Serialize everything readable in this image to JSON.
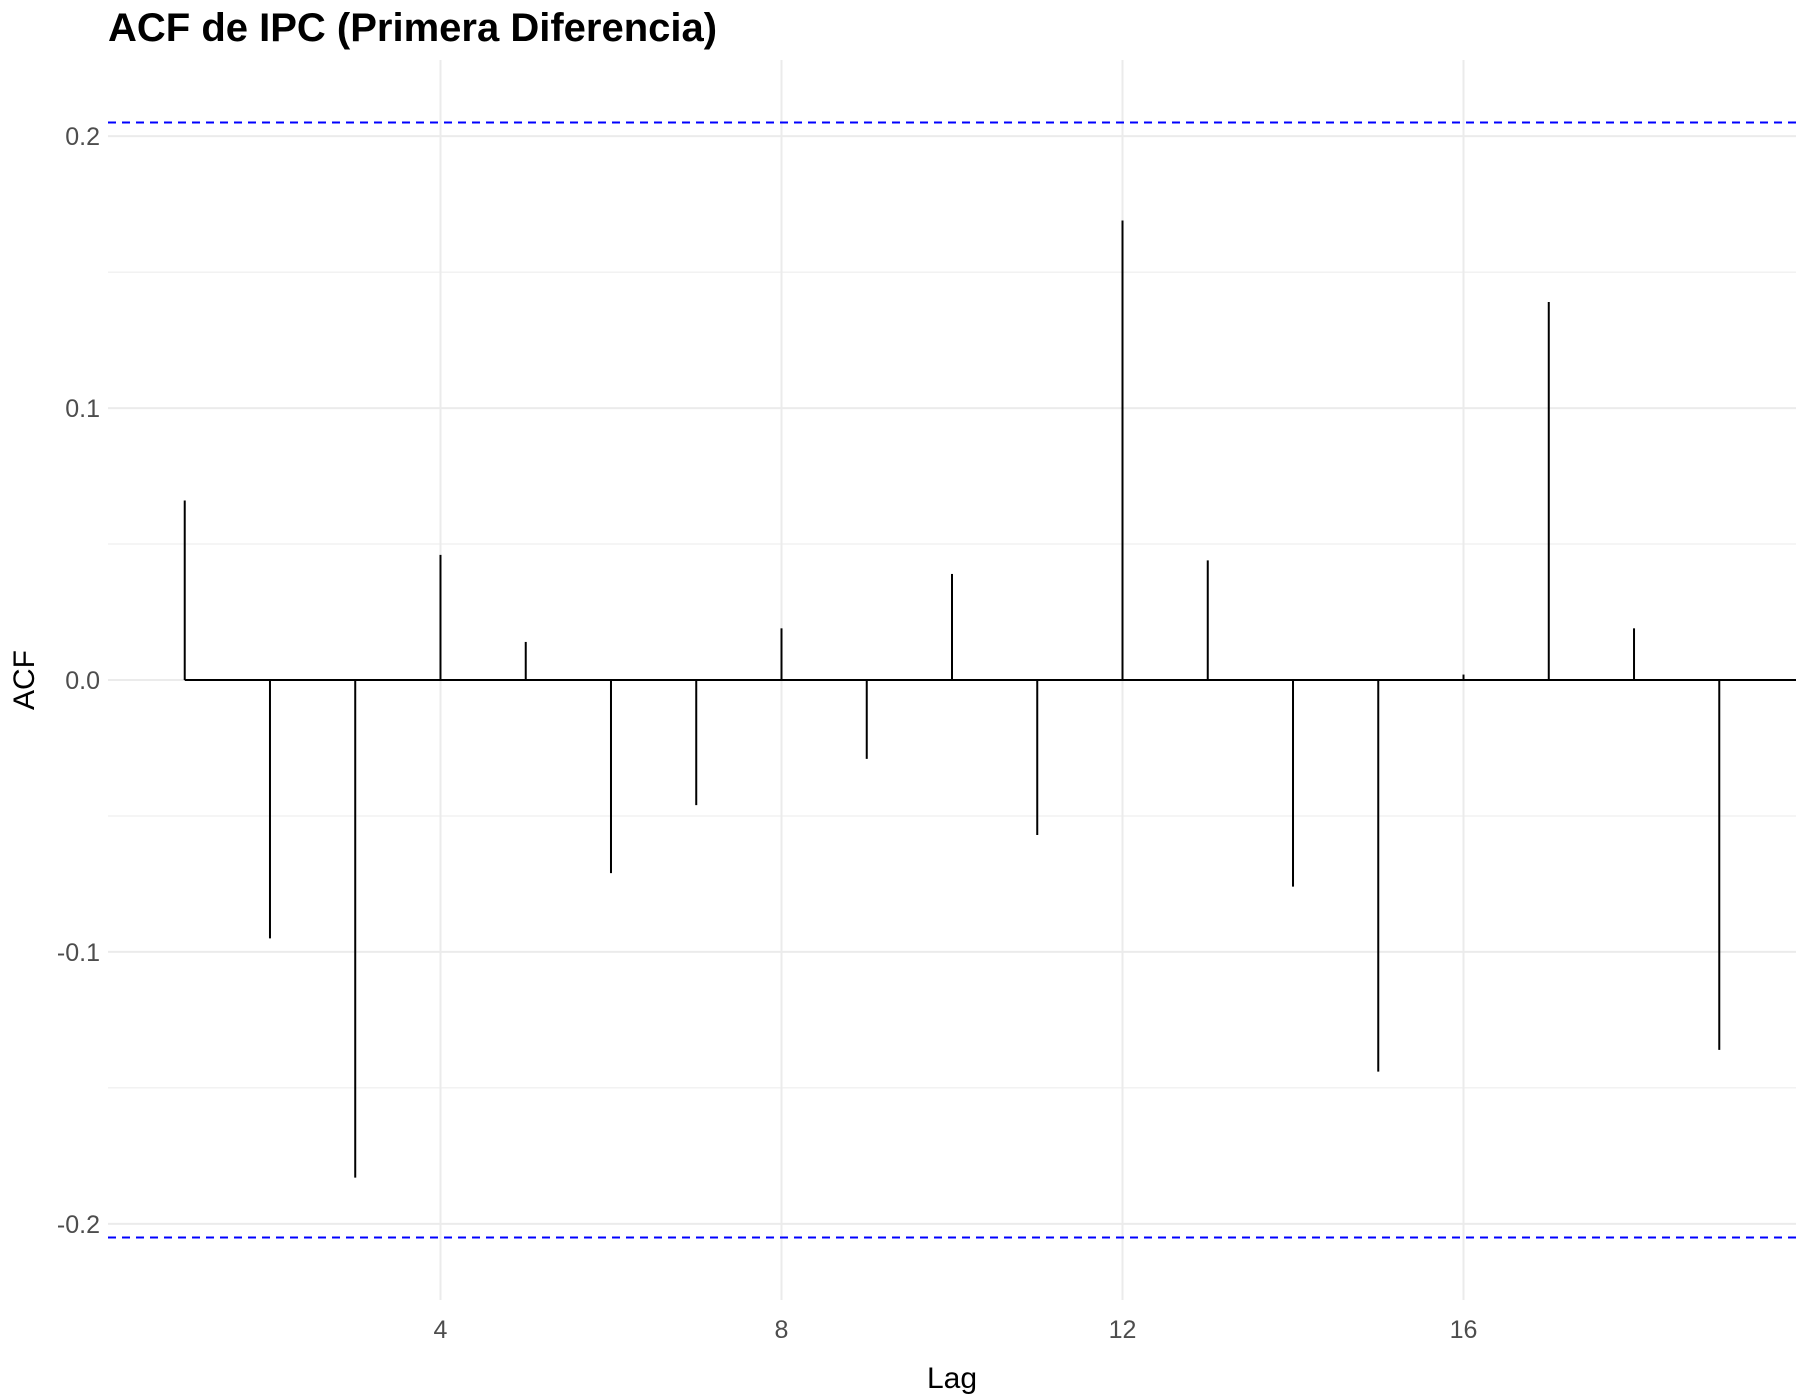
{
  "chart_data": {
    "type": "bar",
    "title": "ACF de IPC (Primera Diferencia)",
    "xlabel": "Lag",
    "ylabel": "ACF",
    "x": [
      1,
      2,
      3,
      4,
      5,
      6,
      7,
      8,
      9,
      10,
      11,
      12,
      13,
      14,
      15,
      16,
      17,
      18,
      19
    ],
    "values": [
      0.066,
      -0.095,
      -0.183,
      0.046,
      0.014,
      -0.071,
      -0.046,
      0.019,
      -0.029,
      0.039,
      -0.057,
      0.169,
      0.044,
      -0.076,
      -0.144,
      0.002,
      0.139,
      0.019,
      -0.136
    ],
    "xlim": [
      0.1,
      19.9
    ],
    "ylim": [
      -0.228,
      0.228
    ],
    "x_ticks": [
      4,
      8,
      12,
      16
    ],
    "x_tick_labels": [
      "4",
      "8",
      "12",
      "16"
    ],
    "y_ticks": [
      -0.2,
      -0.1,
      0.0,
      0.1,
      0.2
    ],
    "y_tick_labels": [
      "-0.2",
      "-0.1",
      "0.0",
      "0.1",
      "0.2"
    ],
    "confidence_bounds": [
      0.205,
      -0.205
    ],
    "grid": true,
    "colors": {
      "bars": "#000000",
      "confidence": "#0000ff",
      "grid": "#ebebeb"
    }
  }
}
